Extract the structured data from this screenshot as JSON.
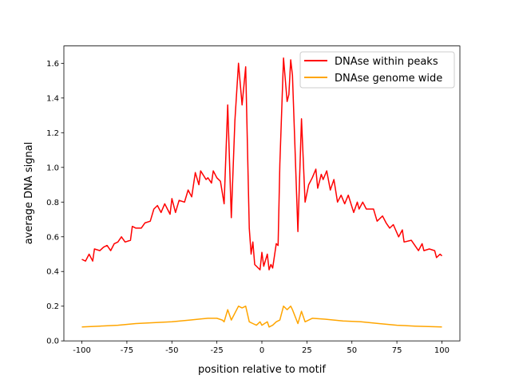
{
  "chart_data": {
    "type": "line",
    "title": "",
    "xlabel": "position relative to motif",
    "ylabel": "average DNA signal",
    "xlim": [
      -110,
      110
    ],
    "ylim": [
      0,
      1.7
    ],
    "xticks": [
      -100,
      -75,
      -50,
      -25,
      0,
      25,
      50,
      75,
      100
    ],
    "yticks": [
      "0.0",
      "0.2",
      "0.4",
      "0.6",
      "0.8",
      "1.0",
      "1.2",
      "1.4",
      "1.6"
    ],
    "grid": false,
    "legend_position": "top-right",
    "series": [
      {
        "name": "DNAse within peaks",
        "color": "#ff0000",
        "x": [
          -100,
          -98,
          -96,
          -94,
          -93,
          -90,
          -88,
          -86,
          -84,
          -82,
          -80,
          -78,
          -76,
          -73,
          -72,
          -70,
          -67,
          -65,
          -62,
          -60,
          -58,
          -56,
          -54,
          -51,
          -50,
          -48,
          -46,
          -43,
          -41,
          -39,
          -37,
          -35,
          -34,
          -31,
          -30,
          -28,
          -27,
          -25,
          -23,
          -21,
          -19,
          -17,
          -15,
          -13,
          -11,
          -9,
          -7,
          -6,
          -5,
          -4,
          -1,
          0,
          1,
          3,
          4,
          5,
          6,
          8,
          9,
          10,
          12,
          14,
          15,
          16,
          17,
          20,
          22,
          24,
          26,
          28,
          30,
          31,
          33,
          34,
          36,
          38,
          40,
          42,
          44,
          46,
          48,
          51,
          53,
          54,
          56,
          58,
          62,
          64,
          67,
          69,
          71,
          73,
          76,
          78,
          79,
          83,
          87,
          89,
          90,
          93,
          96,
          97,
          99,
          100
        ],
        "y": [
          0.47,
          0.46,
          0.5,
          0.46,
          0.53,
          0.52,
          0.54,
          0.55,
          0.52,
          0.56,
          0.57,
          0.6,
          0.57,
          0.58,
          0.66,
          0.65,
          0.65,
          0.68,
          0.69,
          0.76,
          0.78,
          0.74,
          0.79,
          0.73,
          0.82,
          0.74,
          0.81,
          0.8,
          0.87,
          0.83,
          0.97,
          0.9,
          0.98,
          0.93,
          0.94,
          0.91,
          0.98,
          0.94,
          0.92,
          0.79,
          1.36,
          0.71,
          1.27,
          1.6,
          1.36,
          1.58,
          0.65,
          0.5,
          0.57,
          0.44,
          0.41,
          0.51,
          0.43,
          0.5,
          0.41,
          0.44,
          0.42,
          0.56,
          0.55,
          1.02,
          1.63,
          1.38,
          1.42,
          1.62,
          1.53,
          0.63,
          1.28,
          0.8,
          0.9,
          0.94,
          0.99,
          0.88,
          0.96,
          0.93,
          0.98,
          0.87,
          0.93,
          0.8,
          0.84,
          0.79,
          0.84,
          0.74,
          0.8,
          0.76,
          0.8,
          0.76,
          0.76,
          0.69,
          0.72,
          0.68,
          0.65,
          0.67,
          0.6,
          0.64,
          0.57,
          0.58,
          0.52,
          0.56,
          0.52,
          0.53,
          0.52,
          0.48,
          0.5,
          0.49
        ]
      },
      {
        "name": "DNAse genome wide",
        "color": "#ffa500",
        "x": [
          -100,
          -90,
          -80,
          -70,
          -60,
          -50,
          -40,
          -30,
          -25,
          -22,
          -21,
          -19,
          -17,
          -13,
          -11,
          -9,
          -7,
          -5,
          -3,
          -1,
          0,
          3,
          4,
          6,
          8,
          10,
          12,
          14,
          16,
          17,
          20,
          22,
          24,
          28,
          35,
          45,
          55,
          65,
          75,
          85,
          100
        ],
        "y": [
          0.08,
          0.085,
          0.09,
          0.1,
          0.105,
          0.11,
          0.12,
          0.13,
          0.13,
          0.12,
          0.11,
          0.18,
          0.12,
          0.2,
          0.19,
          0.2,
          0.11,
          0.1,
          0.09,
          0.11,
          0.09,
          0.11,
          0.08,
          0.09,
          0.11,
          0.12,
          0.2,
          0.18,
          0.2,
          0.18,
          0.1,
          0.17,
          0.11,
          0.13,
          0.125,
          0.115,
          0.11,
          0.1,
          0.09,
          0.085,
          0.08
        ]
      }
    ]
  }
}
